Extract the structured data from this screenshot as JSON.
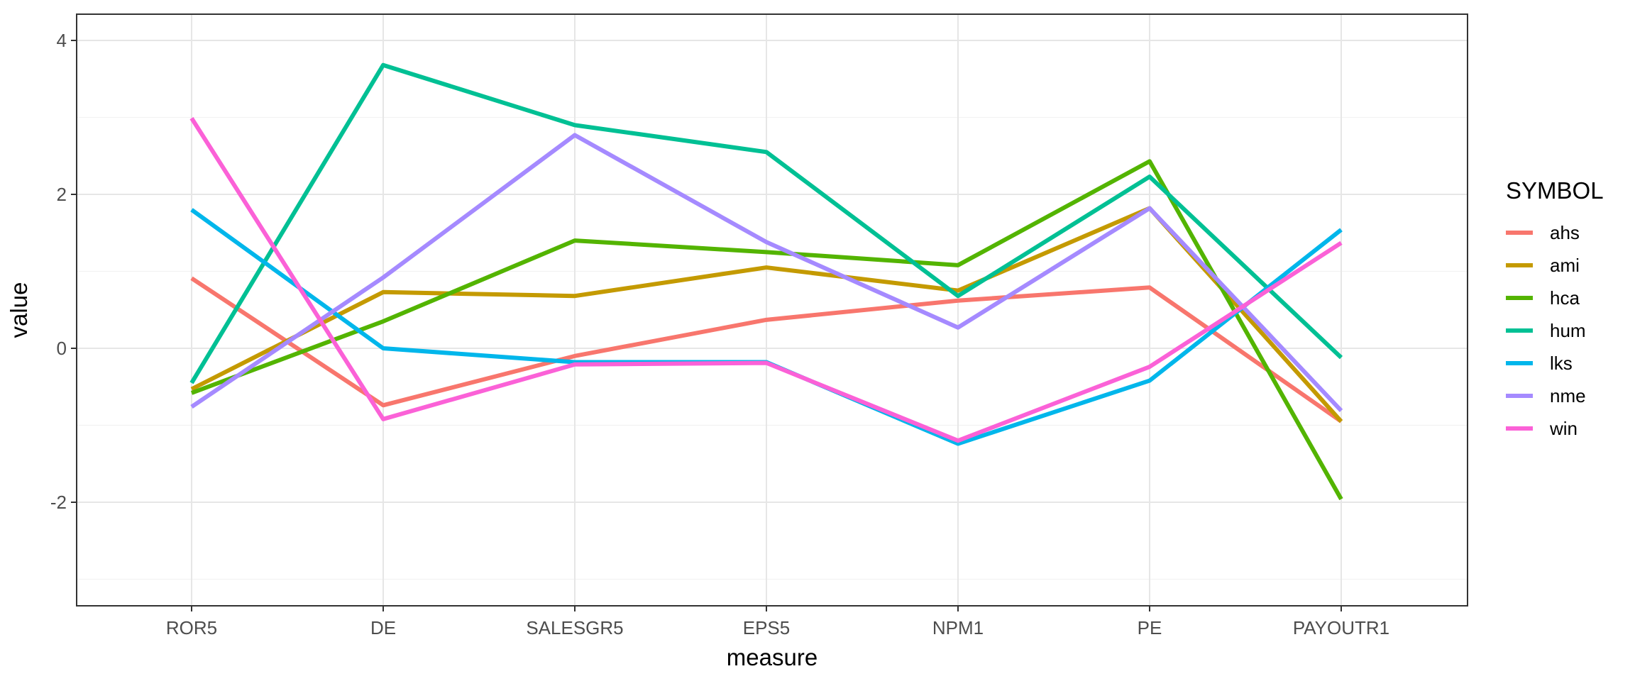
{
  "chart_data": {
    "type": "line",
    "xlabel": "measure",
    "ylabel": "value",
    "categories": [
      "ROR5",
      "DE",
      "SALESGR5",
      "EPS5",
      "NPM1",
      "PE",
      "PAYOUTR1"
    ],
    "ylim": [
      -3.3,
      4.35
    ],
    "y_ticks": [
      -2,
      0,
      2,
      4
    ],
    "grid": true,
    "legend": {
      "title": "SYMBOL",
      "position": "right"
    },
    "series": [
      {
        "name": "ahs",
        "color": "#F8766D",
        "values": [
          0.91,
          -0.74,
          -0.1,
          0.37,
          0.62,
          0.79,
          -0.95
        ]
      },
      {
        "name": "ami",
        "color": "#C49A00",
        "values": [
          -0.53,
          0.73,
          0.68,
          1.05,
          0.75,
          1.82,
          -0.95
        ]
      },
      {
        "name": "hca",
        "color": "#53B400",
        "values": [
          -0.58,
          0.35,
          1.4,
          1.25,
          1.08,
          2.43,
          -1.96
        ]
      },
      {
        "name": "hum",
        "color": "#00C094",
        "values": [
          -0.45,
          3.68,
          2.9,
          2.55,
          0.68,
          2.23,
          -0.12
        ]
      },
      {
        "name": "lks",
        "color": "#00B6EB",
        "values": [
          1.8,
          0.0,
          -0.18,
          -0.18,
          -1.24,
          -0.42,
          1.54
        ]
      },
      {
        "name": "nme",
        "color": "#A58AFF",
        "values": [
          -0.76,
          0.92,
          2.77,
          1.38,
          0.27,
          1.82,
          -0.81
        ]
      },
      {
        "name": "win",
        "color": "#FB61D7",
        "values": [
          2.99,
          -0.92,
          -0.21,
          -0.19,
          -1.2,
          -0.24,
          1.37
        ]
      }
    ]
  }
}
